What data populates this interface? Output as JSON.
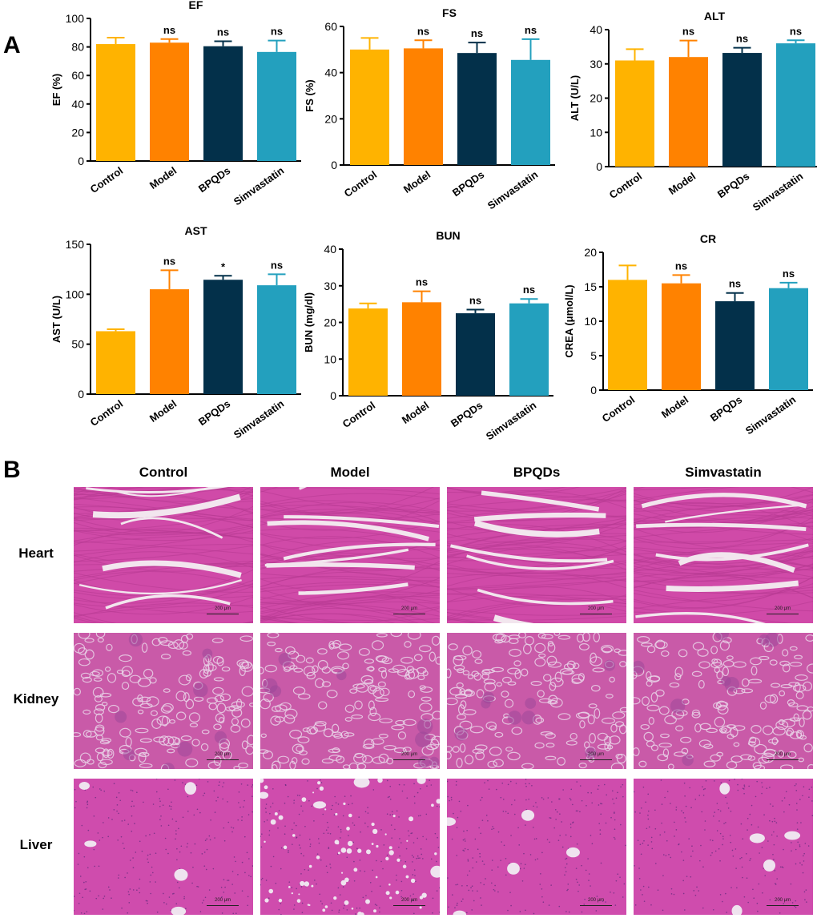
{
  "panel_labels": {
    "a": "A",
    "b": "B"
  },
  "colors": {
    "Control": "#FFB300",
    "Model": "#FF8200",
    "BPQDs": "#03304A",
    "Simvastatin": "#23A0BE"
  },
  "chart_data": [
    {
      "type": "bar",
      "title": "EF",
      "ylabel": "EF (%)",
      "categories": [
        "Control",
        "Model",
        "BPQDs",
        "Simvastatin"
      ],
      "values": [
        82,
        83,
        80.5,
        76.5
      ],
      "errors": [
        4.5,
        2.5,
        3.5,
        8
      ],
      "annotations": [
        "",
        "ns",
        "ns",
        "ns"
      ],
      "ylim": [
        0,
        100
      ],
      "yticks": [
        "0",
        "20",
        "40",
        "60",
        "80",
        "100"
      ]
    },
    {
      "type": "bar",
      "title": "FS",
      "ylabel": "FS (%)",
      "categories": [
        "Control",
        "Model",
        "BPQDs",
        "Simvastatin"
      ],
      "values": [
        50,
        50.5,
        48.5,
        45.5
      ],
      "errors": [
        5,
        3.5,
        4.5,
        9
      ],
      "annotations": [
        "",
        "ns",
        "ns",
        "ns"
      ],
      "ylim": [
        0,
        60
      ],
      "yticks": [
        "0",
        "20",
        "40",
        "60"
      ]
    },
    {
      "type": "bar",
      "title": "ALT",
      "ylabel": "ALT (U/L)",
      "categories": [
        "Control",
        "Model",
        "BPQDs",
        "Simvastatin"
      ],
      "values": [
        31,
        32,
        33.2,
        36
      ],
      "errors": [
        3.3,
        4.8,
        1.5,
        0.9
      ],
      "annotations": [
        "",
        "ns",
        "ns",
        "ns"
      ],
      "ylim": [
        0,
        40
      ],
      "yticks": [
        "0",
        "10",
        "20",
        "30",
        "40"
      ]
    },
    {
      "type": "bar",
      "title": "AST",
      "ylabel": "AST (U/L)",
      "categories": [
        "Control",
        "Model",
        "BPQDs",
        "Simvastatin"
      ],
      "values": [
        63,
        105,
        114.5,
        109
      ],
      "errors": [
        2,
        19,
        4,
        11
      ],
      "annotations": [
        "",
        "ns",
        "*",
        "ns"
      ],
      "ylim": [
        0,
        150
      ],
      "yticks": [
        "0",
        "50",
        "100",
        "150"
      ]
    },
    {
      "type": "bar",
      "title": "BUN",
      "ylabel": "BUN (mg/dl)",
      "categories": [
        "Control",
        "Model",
        "BPQDs",
        "Simvastatin"
      ],
      "values": [
        23.8,
        25.5,
        22.5,
        25.2
      ],
      "errors": [
        1.4,
        3,
        1,
        1.2
      ],
      "annotations": [
        "",
        "ns",
        "ns",
        "ns"
      ],
      "ylim": [
        0,
        40
      ],
      "yticks": [
        "0",
        "10",
        "20",
        "30",
        "40"
      ]
    },
    {
      "type": "bar",
      "title": "CR",
      "ylabel": "CREA (μmol/L)",
      "categories": [
        "Control",
        "Model",
        "BPQDs",
        "Simvastatin"
      ],
      "values": [
        16,
        15.5,
        12.9,
        14.8
      ],
      "errors": [
        2.1,
        1.2,
        1.2,
        0.8
      ],
      "annotations": [
        "",
        "ns",
        "ns",
        "ns"
      ],
      "ylim": [
        0,
        20
      ],
      "yticks": [
        "0",
        "5",
        "10",
        "15",
        "20"
      ]
    }
  ],
  "histology": {
    "columns": [
      "Control",
      "Model",
      "BPQDs",
      "Simvastatin"
    ],
    "rows": [
      "Heart",
      "Kidney",
      "Liver"
    ],
    "scale_label": "200 μm"
  }
}
